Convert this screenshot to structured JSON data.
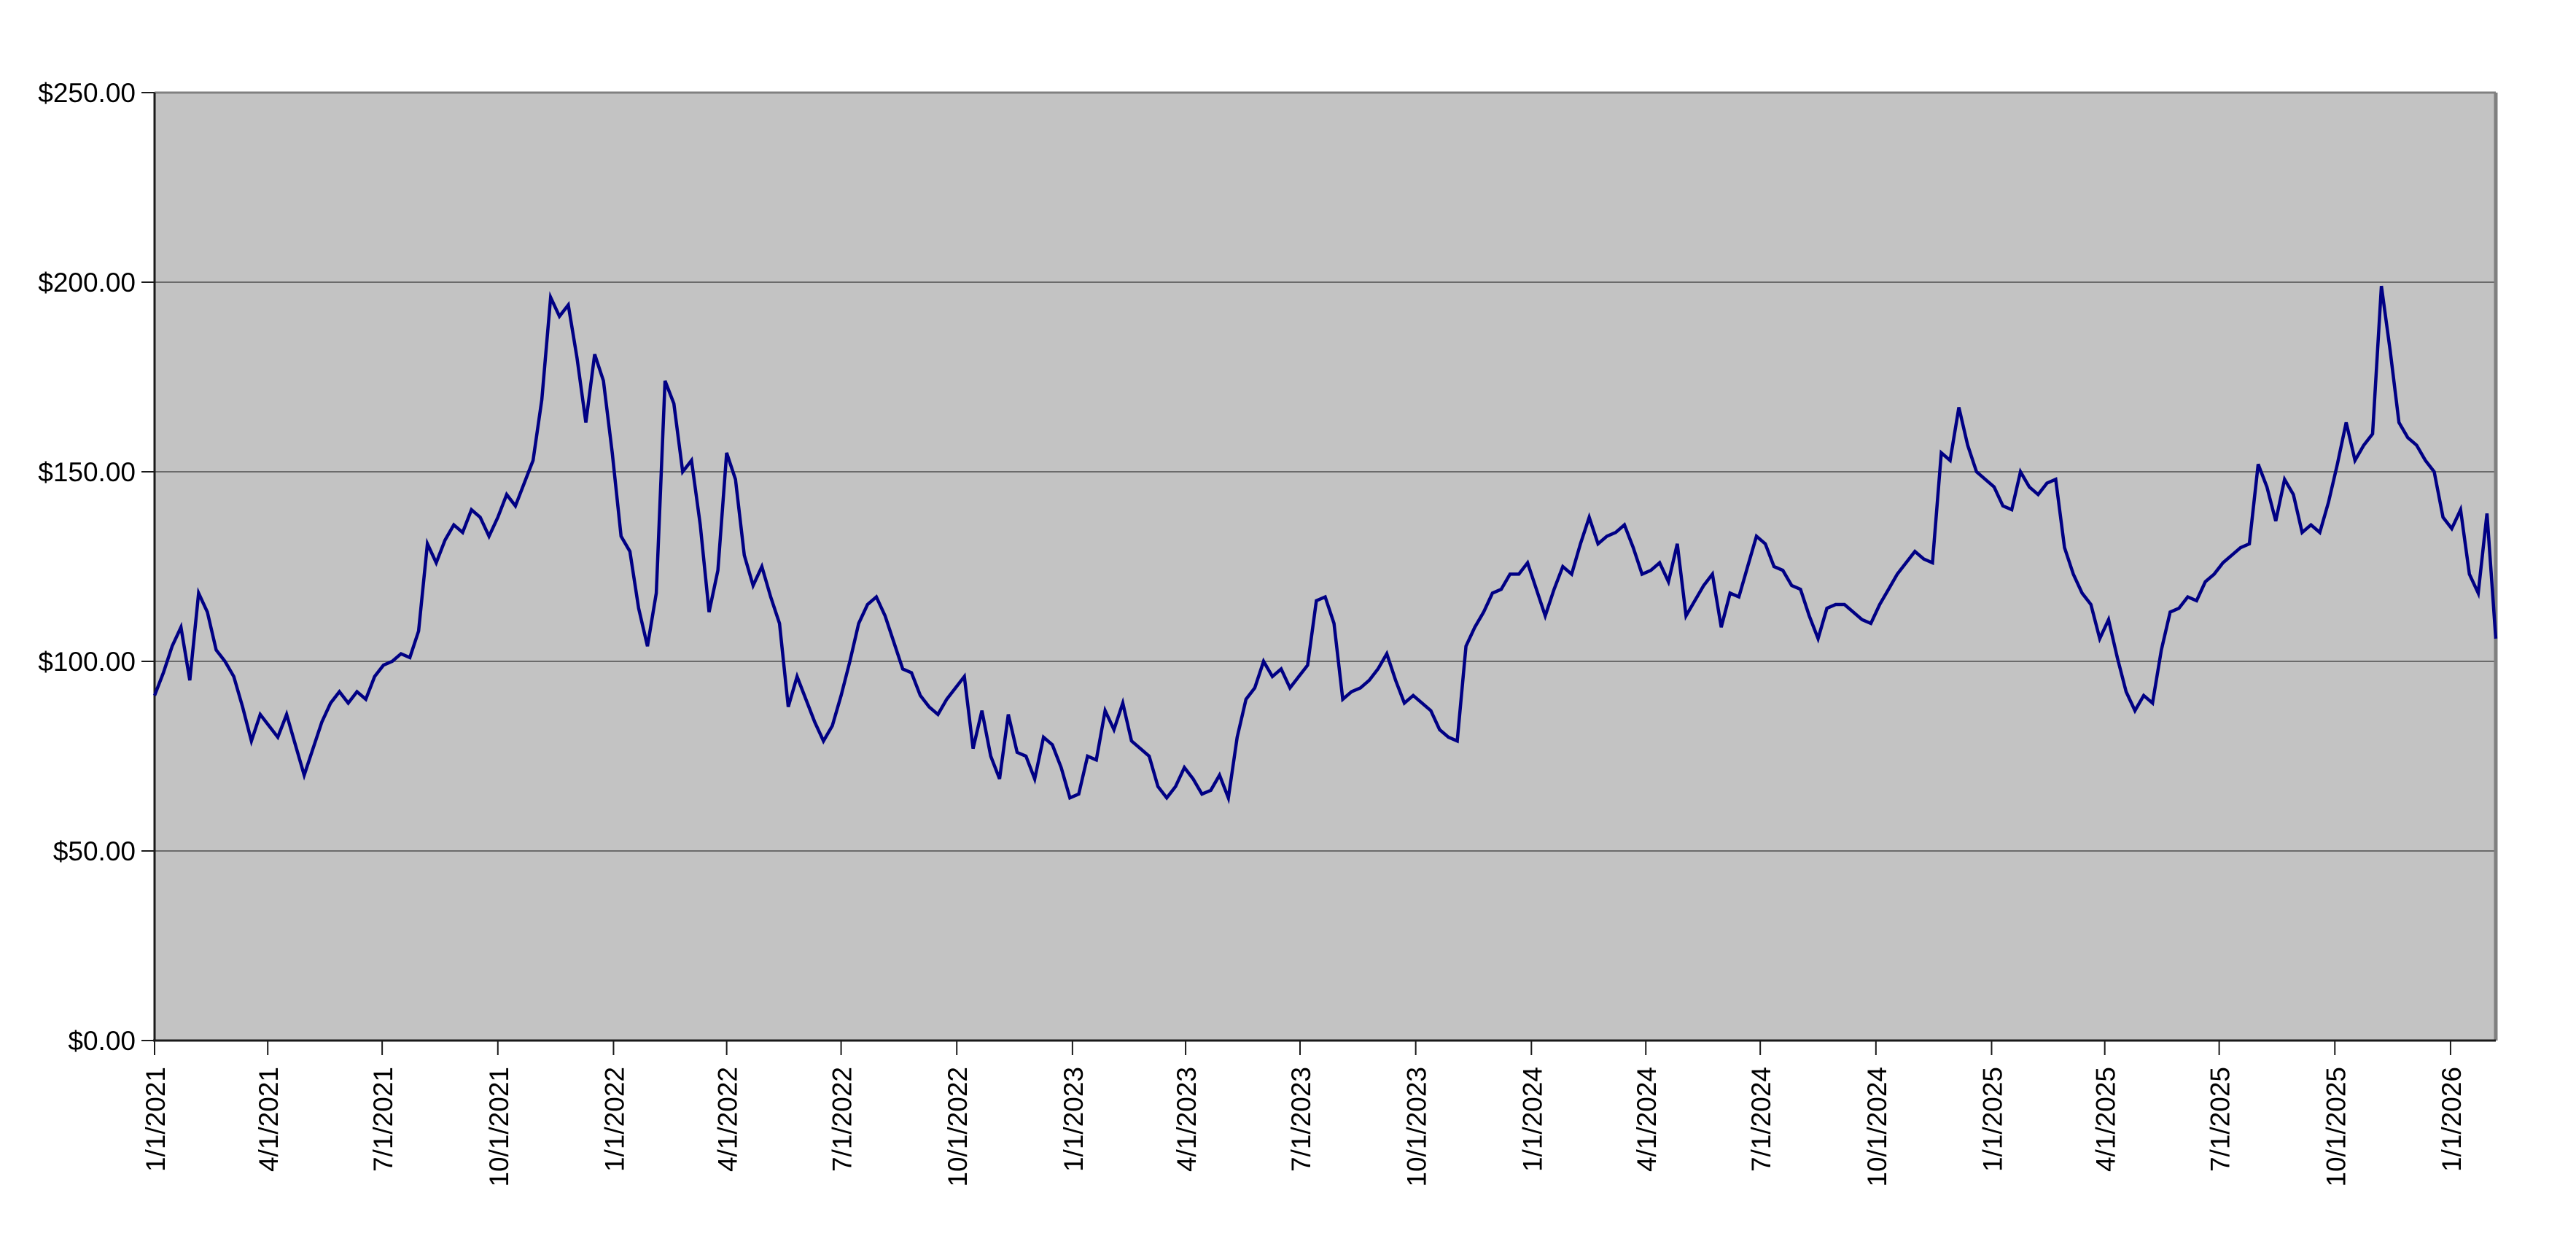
{
  "page": {
    "background_color": "#ffffff"
  },
  "chart_data": {
    "type": "line",
    "grid": "horizontal",
    "legend_position": "none",
    "plot_style": {
      "background_color": "#c3c3c3",
      "gridline_color": "#6b6b6b",
      "outer_border_color": "#808080",
      "axis_color": "#1a1a1a",
      "tick_color": "#1a1a1a",
      "label_color": "#000000"
    },
    "y_axis": {
      "min": 0,
      "max": 250,
      "step": 50,
      "format": "currency",
      "tick_labels": [
        "$250.00",
        "$200.00",
        "$150.00",
        "$100.00",
        "$50.00",
        "$0.00"
      ]
    },
    "x_axis": {
      "tick_labels": [
        "1/1/2021",
        "4/1/2021",
        "7/1/2021",
        "10/1/2021",
        "1/1/2022",
        "4/1/2022",
        "7/1/2022",
        "10/1/2022",
        "1/1/2023",
        "4/1/2023",
        "7/1/2023",
        "10/1/2023",
        "1/1/2024",
        "4/1/2024",
        "7/1/2024",
        "10/1/2024",
        "1/1/2025",
        "4/1/2025",
        "7/1/2025",
        "10/1/2025",
        "1/1/2026"
      ],
      "label_rotation_degrees": -90
    },
    "series": [
      {
        "color": "#000084",
        "start_date": "1/1/2021",
        "interval_days": 7,
        "values": [
          91,
          97,
          104,
          109,
          95,
          118,
          113,
          103,
          100,
          96,
          88,
          79,
          86,
          83,
          80,
          86,
          78,
          70,
          77,
          84,
          89,
          92,
          89,
          92,
          90,
          96,
          99,
          100,
          102,
          101,
          108,
          131,
          126,
          132,
          136,
          134,
          140,
          138,
          133,
          138,
          144,
          141,
          147,
          153,
          169,
          196,
          191,
          194,
          180,
          163,
          181,
          174,
          155,
          133,
          129,
          114,
          104,
          118,
          174,
          168,
          150,
          153,
          136,
          113,
          124,
          155,
          148,
          128,
          120,
          125,
          117,
          110,
          88,
          96,
          90,
          84,
          79,
          83,
          91,
          100,
          110,
          115,
          117,
          112,
          105,
          98,
          97,
          91,
          88,
          86,
          90,
          93,
          96,
          77,
          87,
          75,
          69,
          86,
          76,
          75,
          69,
          80,
          78,
          72,
          64,
          65,
          75,
          74,
          87,
          82,
          89,
          79,
          77,
          75,
          67,
          64,
          67,
          72,
          69,
          65,
          66,
          70,
          64,
          80,
          90,
          93,
          100,
          96,
          98,
          93,
          96,
          99,
          116,
          117,
          110,
          90,
          92,
          93,
          95,
          98,
          102,
          95,
          89,
          91,
          89,
          87,
          82,
          80,
          79,
          104,
          109,
          113,
          118,
          119,
          123,
          123,
          126,
          119,
          112,
          119,
          125,
          123,
          131,
          138,
          131,
          133,
          134,
          136,
          130,
          123,
          124,
          126,
          121,
          131,
          112,
          116,
          120,
          123,
          109,
          118,
          117,
          125,
          133,
          131,
          125,
          124,
          120,
          119,
          112,
          106,
          114,
          115,
          115,
          113,
          111,
          110,
          115,
          119,
          123,
          126,
          129,
          127,
          126,
          155,
          153,
          167,
          157,
          150,
          148,
          146,
          141,
          140,
          150,
          146,
          144,
          147,
          148,
          130,
          123,
          118,
          115,
          106,
          111,
          101,
          92,
          87,
          91,
          89,
          103,
          113,
          114,
          117,
          116,
          121,
          123,
          126,
          128,
          130,
          131,
          152,
          146,
          137,
          148,
          144,
          134,
          136,
          134,
          142,
          152,
          163,
          153,
          157,
          160,
          199,
          182,
          163,
          159,
          157,
          153,
          150,
          138,
          135,
          140,
          123,
          118,
          139,
          106
        ]
      }
    ]
  },
  "layout_hints": {
    "note": "no chart title, no legend, single navy weekly price line on gray plot area"
  }
}
